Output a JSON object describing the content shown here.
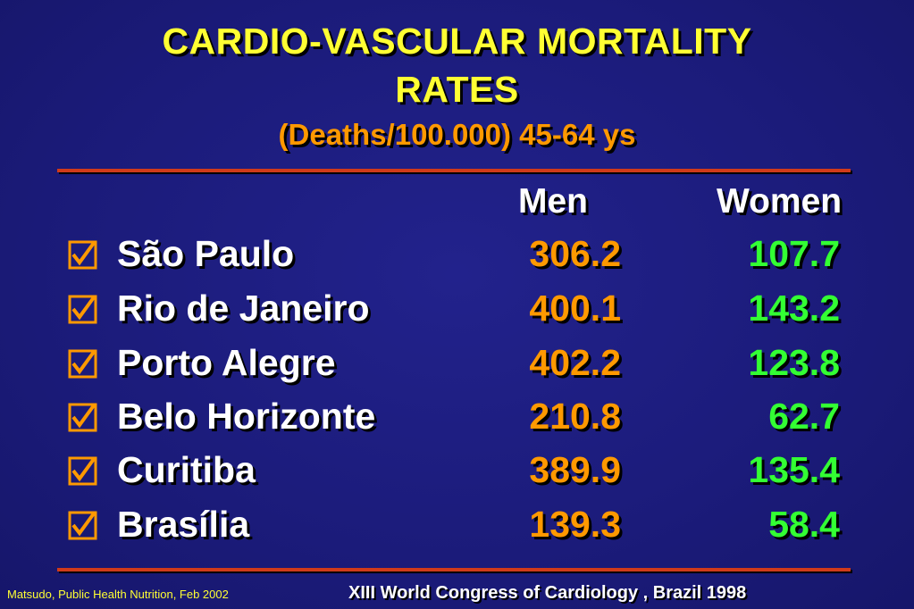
{
  "title_line1": "CARDIO-VASCULAR MORTALITY",
  "title_line2": "RATES",
  "subtitle": "(Deaths/100.000) 45-64 ys",
  "columns": {
    "men": "Men",
    "women": "Women"
  },
  "check_icon": "checked-box-icon",
  "colors": {
    "background": "#1c1c7e",
    "title": "#ffff33",
    "subtitle": "#ff9900",
    "men_values": "#ff9900",
    "women_values": "#33ff33",
    "rule": "#d03a1a"
  },
  "rows": [
    {
      "city": "São Paulo",
      "men": "306.2",
      "women": "107.7"
    },
    {
      "city": "Rio de Janeiro",
      "men": "400.1",
      "women": "143.2"
    },
    {
      "city": "Porto Alegre",
      "men": "402.2",
      "women": "123.8"
    },
    {
      "city": "Belo Horizonte",
      "men": "210.8",
      "women": "62.7"
    },
    {
      "city": "Curitiba",
      "men": "389.9",
      "women": "135.4"
    },
    {
      "city": "Brasília",
      "men": "139.3",
      "women": "58.4"
    }
  ],
  "footer_left": "Matsudo, Public Health Nutrition, Feb 2002",
  "footer_right": "XIII World Congress of Cardiology , Brazil 1998"
}
